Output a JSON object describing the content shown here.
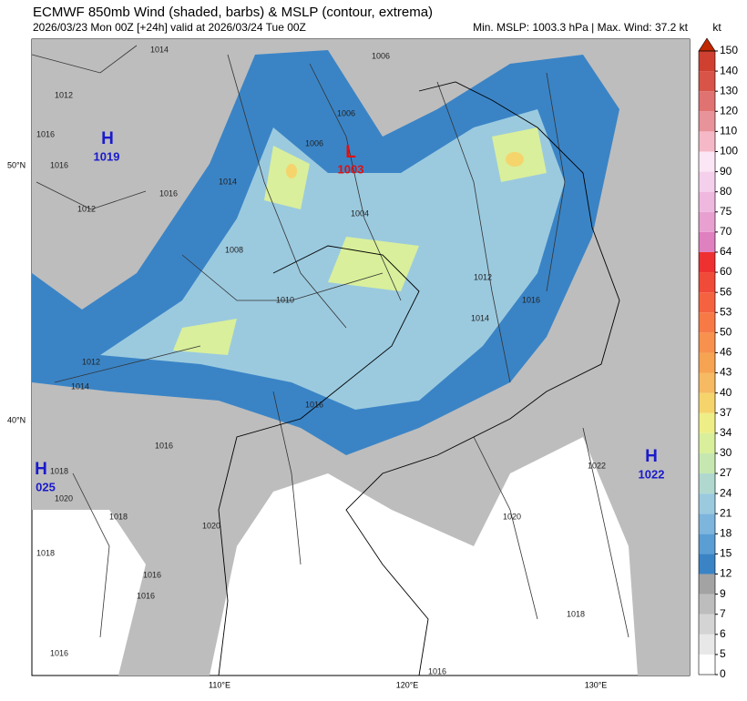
{
  "header": {
    "title": "ECMWF 850mb Wind (shaded, barbs) & MSLP (contour, extrema)",
    "subtitle": "2026/03/23 Mon 00Z [+24h] valid at 2026/03/24 Tue 00Z",
    "stats": "Min. MSLP: 1003.3 hPa | Max. Wind: 37.2 kt"
  },
  "colorbar": {
    "unit": "kt",
    "levels": [
      0,
      5,
      6,
      7,
      9,
      12,
      15,
      18,
      21,
      24,
      27,
      30,
      34,
      37,
      40,
      43,
      46,
      50,
      53,
      56,
      60,
      64,
      70,
      75,
      80,
      90,
      100,
      110,
      120,
      130,
      140,
      150
    ],
    "colors": [
      "#ffffff",
      "#e8e8e8",
      "#d4d4d4",
      "#bdbdbd",
      "#a3a3a3",
      "#3a84c6",
      "#5a9ed4",
      "#7db5dc",
      "#9bcadf",
      "#b0d8cf",
      "#c6e8b0",
      "#d9ef9b",
      "#eeee86",
      "#f5d46c",
      "#f6ba62",
      "#f6a352",
      "#f8904e",
      "#f77a46",
      "#f46240",
      "#f04a38",
      "#ee3030",
      "#df80bf",
      "#e8a0d0",
      "#efb8df",
      "#f5d0ec",
      "#fbe6f5",
      "#f4b8c6",
      "#e8929a",
      "#e07272",
      "#d85448",
      "#cf4030"
    ],
    "extend_color": "#c02800"
  },
  "axes": {
    "lat_labels": [
      "50°N",
      "40°N"
    ],
    "lon_labels": [
      "110°E",
      "120°E",
      "130°E"
    ]
  },
  "extrema": [
    {
      "type": "H",
      "value": "1019"
    },
    {
      "type": "L",
      "value": "1003"
    },
    {
      "type": "H",
      "value": "1022"
    },
    {
      "type": "H",
      "value": "025"
    }
  ],
  "contour_labels": [
    "1014",
    "1012",
    "1016",
    "1016",
    "1016",
    "1012",
    "1006",
    "1006",
    "1006",
    "1004",
    "1014",
    "1008",
    "1010",
    "1012",
    "1014",
    "1012",
    "1014",
    "1016",
    "1016",
    "1016",
    "1018",
    "1018",
    "1020",
    "1018",
    "1016",
    "1020",
    "1016",
    "1020",
    "1022",
    "1018",
    "1016",
    "1016"
  ]
}
